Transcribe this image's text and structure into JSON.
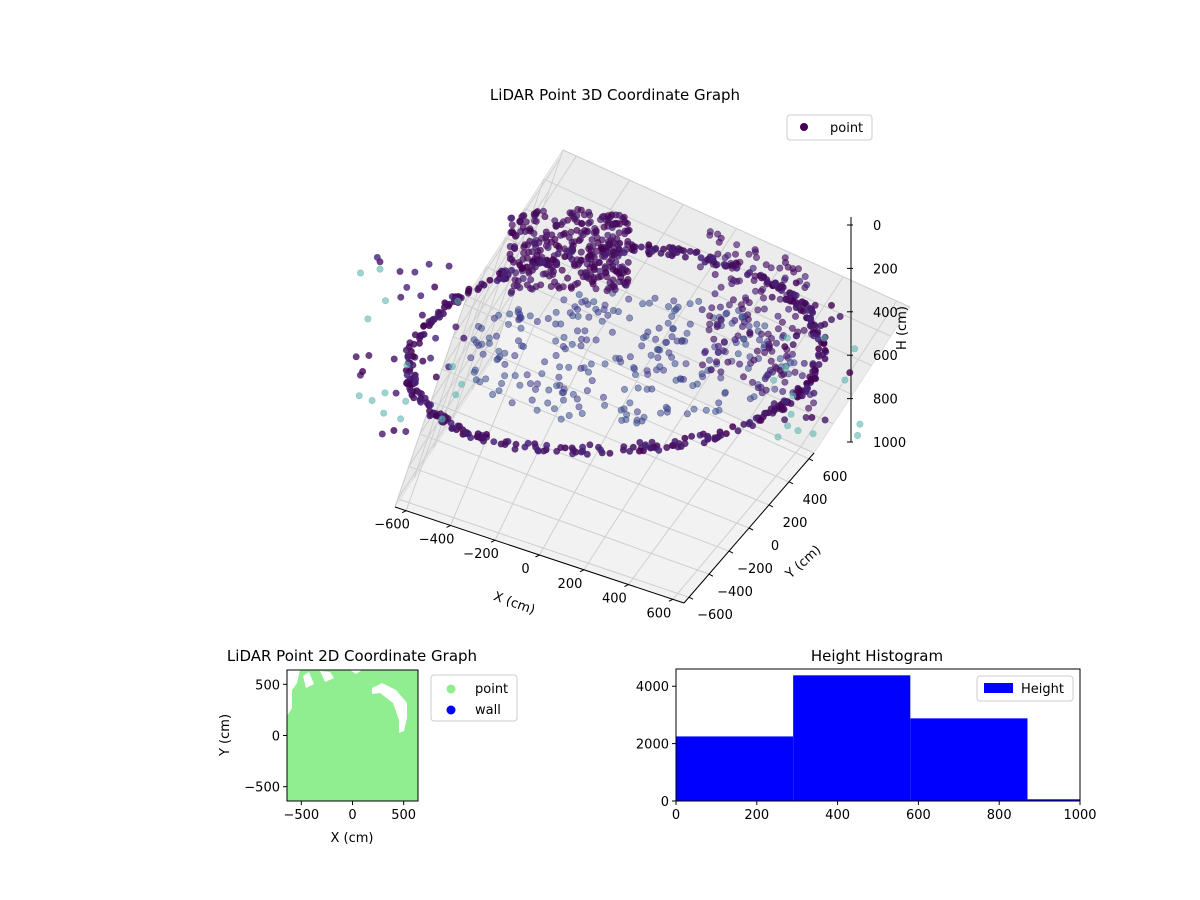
{
  "chart_data": [
    {
      "type": "scatter",
      "projection": "3d",
      "title": "LiDAR Point 3D Coordinate Graph",
      "xlabel": "X (cm)",
      "ylabel": "Y (cm)",
      "zlabel": "H (cm)",
      "xlim": [
        -650,
        650
      ],
      "ylim": [
        -650,
        650
      ],
      "zlim": [
        1000,
        0
      ],
      "xticks": [
        -600,
        -400,
        -200,
        0,
        200,
        400,
        600
      ],
      "yticks": [
        -600,
        -400,
        -200,
        0,
        200,
        400,
        600
      ],
      "zticks": [
        0,
        200,
        400,
        600,
        800,
        1000
      ],
      "grid": true,
      "legend": {
        "position": "top-right",
        "entries": [
          "point"
        ]
      },
      "colormap": "viridis",
      "series": [
        {
          "name": "point",
          "color": "#440154",
          "description_points": [
            {
              "x": -480,
              "y": 200,
              "z": 120
            },
            {
              "x": -300,
              "y": 500,
              "z": 60
            },
            {
              "x": 0,
              "y": 620,
              "z": 30
            },
            {
              "x": 300,
              "y": 560,
              "z": 80
            },
            {
              "x": 560,
              "y": 300,
              "z": 300
            },
            {
              "x": 620,
              "y": 0,
              "z": 500
            },
            {
              "x": 520,
              "y": -300,
              "z": 700
            },
            {
              "x": 200,
              "y": -560,
              "z": 780
            },
            {
              "x": -200,
              "y": -560,
              "z": 800
            },
            {
              "x": -520,
              "y": -300,
              "z": 760
            },
            {
              "x": -620,
              "y": 0,
              "z": 600
            },
            {
              "x": -600,
              "y": 100,
              "z": 420
            }
          ]
        }
      ]
    },
    {
      "type": "scatter",
      "title": "LiDAR Point 2D Coordinate Graph",
      "xlabel": "X (cm)",
      "ylabel": "Y (cm)",
      "xlim": [
        -640,
        640
      ],
      "ylim": [
        -640,
        640
      ],
      "xticks": [
        -500,
        0,
        500
      ],
      "yticks": [
        -500,
        0,
        500
      ],
      "legend": {
        "position": "right",
        "entries": [
          "point",
          "wall"
        ]
      },
      "series": [
        {
          "name": "point",
          "color": "#90ee90"
        },
        {
          "name": "wall",
          "color": "#0000ff"
        }
      ]
    },
    {
      "type": "bar",
      "subtype": "histogram",
      "title": "Height Histogram",
      "xlabel": "",
      "ylabel": "",
      "xlim": [
        0,
        1000
      ],
      "ylim": [
        0,
        4600
      ],
      "xticks": [
        0,
        200,
        400,
        600,
        800,
        1000
      ],
      "yticks": [
        0,
        2000,
        4000
      ],
      "legend": {
        "position": "top-right",
        "entries": [
          "Height"
        ]
      },
      "series": [
        {
          "name": "Height",
          "color": "#0000ff",
          "bins": [
            {
              "from": 0,
              "to": 290,
              "count": 2250
            },
            {
              "from": 290,
              "to": 580,
              "count": 4380
            },
            {
              "from": 580,
              "to": 870,
              "count": 2880
            },
            {
              "from": 870,
              "to": 1000,
              "count": 60
            }
          ]
        }
      ]
    }
  ]
}
